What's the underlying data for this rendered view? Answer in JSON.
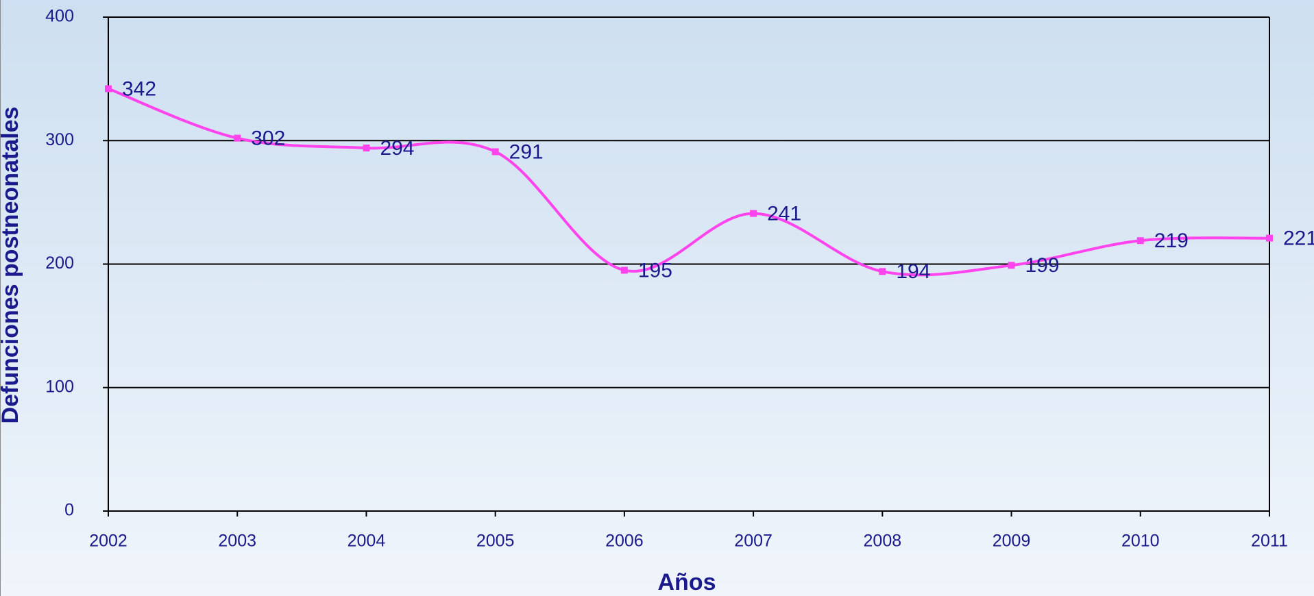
{
  "chart_data": {
    "type": "line",
    "x_label": "Años",
    "y_label": "Defunciones postneonatales",
    "categories": [
      "2002",
      "2003",
      "2004",
      "2005",
      "2006",
      "2007",
      "2008",
      "2009",
      "2010",
      "2011"
    ],
    "series": [
      {
        "name": "Defunciones postneonatales",
        "color": "#ff44ee",
        "values": [
          342,
          302,
          294,
          291,
          195,
          241,
          194,
          199,
          219,
          221
        ]
      }
    ],
    "ylim": [
      0,
      400
    ],
    "yticks": [
      0,
      100,
      200,
      300,
      400
    ],
    "grid": true
  }
}
